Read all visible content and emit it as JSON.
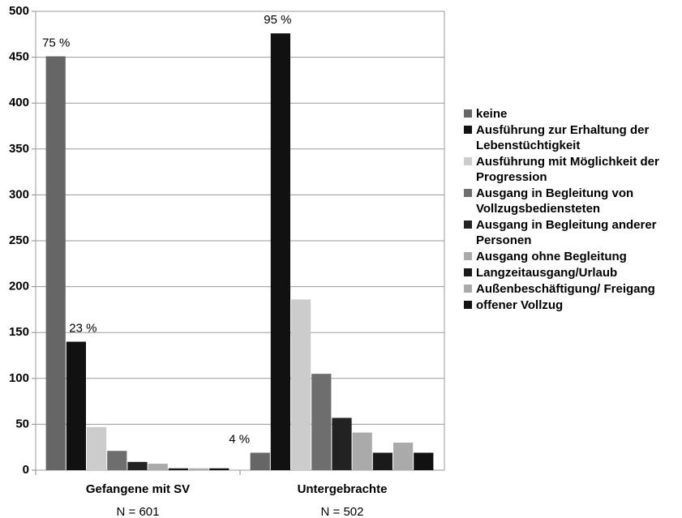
{
  "chart_data": {
    "type": "bar",
    "categories": [
      "Gefangene mit SV",
      "Untergebrachte"
    ],
    "category_notes": [
      "N = 601",
      "N = 502"
    ],
    "series": [
      {
        "name": "keine",
        "color": "#666666",
        "values": [
          451,
          19
        ]
      },
      {
        "name": "Ausführung zur Erhaltung der Lebenstüchtigkeit",
        "color": "#111111",
        "values": [
          140,
          476
        ]
      },
      {
        "name": "Ausführung mit Möglichkeit der Progression",
        "color": "#cccccc",
        "values": [
          47,
          186
        ]
      },
      {
        "name": "Ausgang in Begleitung von Vollzugsbediensteten",
        "color": "#6e6e6e",
        "values": [
          21,
          105
        ]
      },
      {
        "name": "Ausgang in Begleitung anderer Personen",
        "color": "#222222",
        "values": [
          9,
          57
        ]
      },
      {
        "name": "Ausgang ohne Begleitung",
        "color": "#aaaaaa",
        "values": [
          7,
          41
        ]
      },
      {
        "name": "Langzeitausgang/Urlaub",
        "color": "#1a1a1a",
        "values": [
          2,
          19
        ]
      },
      {
        "name": "Außenbeschäftigung/ Freigang",
        "color": "#aaaaaa",
        "values": [
          2,
          30
        ]
      },
      {
        "name": "offener Vollzug",
        "color": "#111111",
        "values": [
          2,
          19
        ]
      }
    ],
    "annotations": [
      "75 %",
      "23 %",
      "4 %",
      "95 %"
    ],
    "ylim": [
      0,
      500
    ],
    "yticks": [
      0,
      50,
      100,
      150,
      200,
      250,
      300,
      350,
      400,
      450,
      500
    ],
    "grid": true,
    "legend": "right"
  }
}
